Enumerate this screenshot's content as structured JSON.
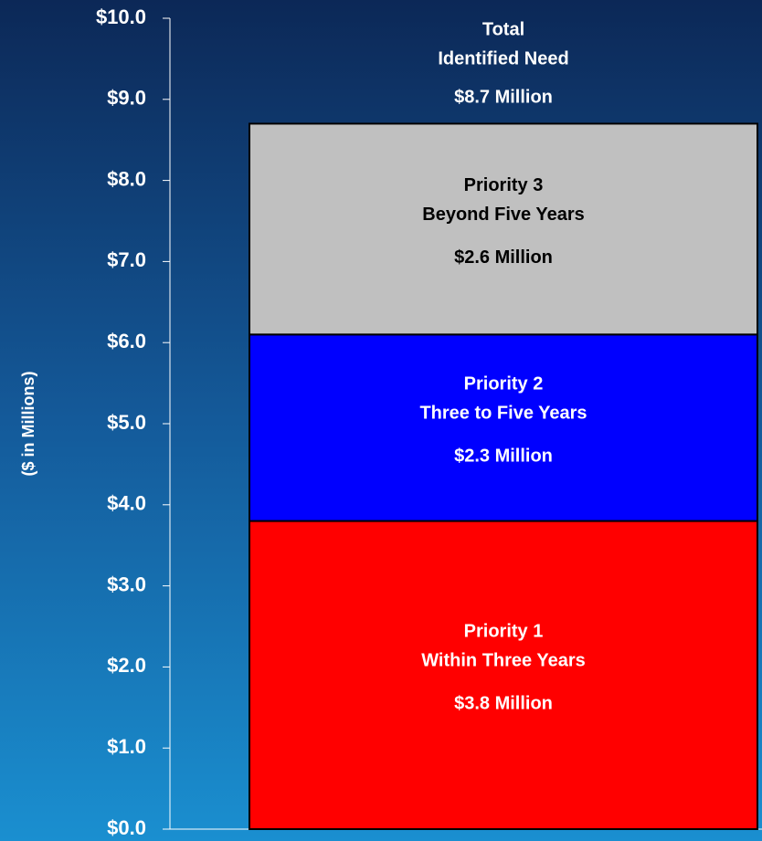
{
  "chart_data": {
    "type": "stacked_bar",
    "y_label": "($ in Millions)",
    "categories": [
      null
    ],
    "ylim": [
      0,
      10
    ],
    "yticks": [
      {
        "value": 0,
        "label": "$0.0"
      },
      {
        "value": 1,
        "label": "$1.0"
      },
      {
        "value": 2,
        "label": "$2.0"
      },
      {
        "value": 3,
        "label": "$3.0"
      },
      {
        "value": 4,
        "label": "$4.0"
      },
      {
        "value": 5,
        "label": "$5.0"
      },
      {
        "value": 6,
        "label": "$6.0"
      },
      {
        "value": 7,
        "label": "$7.0"
      },
      {
        "value": 8,
        "label": "$8.0"
      },
      {
        "value": 9,
        "label": "$9.0"
      },
      {
        "value": 10,
        "label": "$10.0"
      }
    ],
    "series": [
      {
        "name": "Priority 1",
        "description": "Within Three Years",
        "color": "#ff0000",
        "label_color": "#ffffff",
        "values": [
          3.8
        ],
        "value_labels": [
          "$3.8  Million"
        ]
      },
      {
        "name": "Priority 2",
        "description": "Three to Five Years",
        "color": "#0000ff",
        "label_color": "#ffffff",
        "values": [
          2.3
        ],
        "value_labels": [
          "$2.3  Million"
        ]
      },
      {
        "name": "Priority 3",
        "description": "Beyond Five Years",
        "color": "#c0c0c0",
        "label_color": "#000000",
        "values": [
          2.6
        ],
        "value_labels": [
          "$2.6  Million"
        ]
      }
    ],
    "total": {
      "lines": [
        "Total",
        "Identified Need"
      ],
      "value": 8.7,
      "value_label": "$8.7  Million"
    }
  }
}
